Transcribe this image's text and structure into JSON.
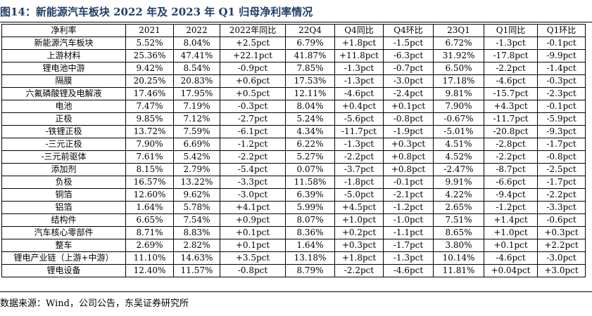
{
  "figure_title": "图14：新能源汽车板块 2022 年及 2023 年 Q1 归母净利率情况",
  "table": {
    "headers": [
      "净利率",
      "2021",
      "2022",
      "2022年同比",
      "22Q4",
      "Q4同比",
      "Q4环比",
      "23Q1",
      "Q1同比",
      "Q1环比"
    ],
    "rows": [
      [
        "新能源汽车板块",
        "5.52%",
        "8.04%",
        "+2.5pct",
        "6.79%",
        "+1.8pct",
        "-1.5pct",
        "6.72%",
        "-1.3pct",
        "-0.1pct"
      ],
      [
        "上游材料",
        "25.36%",
        "47.41%",
        "+22.1pct",
        "41.87%",
        "+11.8pct",
        "-6.3pct",
        "31.92%",
        "-17.8pct",
        "-9.9pct"
      ],
      [
        "锂电池中游",
        "9.42%",
        "8.54%",
        "-0.9pct",
        "7.85%",
        "-1.3pct",
        "-0.7pct",
        "6.50%",
        "-2.2pct",
        "-1.4pct"
      ],
      [
        "隔膜",
        "20.25%",
        "20.83%",
        "+0.6pct",
        "17.53%",
        "-1.3pct",
        "-3.0pct",
        "17.18%",
        "-4.6pct",
        "-0.3pct"
      ],
      [
        "六氟磷酸锂及电解液",
        "17.46%",
        "17.95%",
        "+0.5pct",
        "12.11%",
        "-4.6pct",
        "-2.4pct",
        "9.81%",
        "-15.7pct",
        "-2.3pct"
      ],
      [
        "电池",
        "7.47%",
        "7.19%",
        "-0.3pct",
        "8.04%",
        "+0.4pct",
        "+0.1pct",
        "7.90%",
        "+4.3pct",
        "-0.1pct"
      ],
      [
        "正极",
        "9.85%",
        "7.12%",
        "-2.7pct",
        "5.24%",
        "-5.6pct",
        "-0.8pct",
        "-0.67%",
        "-11.7pct",
        "-5.9pct"
      ],
      [
        "-铁锂正极",
        "13.72%",
        "7.59%",
        "-6.1pct",
        "4.34%",
        "-11.7pct",
        "-1.9pct",
        "-5.01%",
        "-20.8pct",
        "-9.3pct"
      ],
      [
        "-三元正极",
        "7.90%",
        "6.69%",
        "-1.2pct",
        "6.22%",
        "-1.3pct",
        "+0.3pct",
        "4.51%",
        "-2.8pct",
        "-1.7pct"
      ],
      [
        "-三元前驱体",
        "7.61%",
        "5.42%",
        "-2.2pct",
        "5.27%",
        "-2.2pct",
        "+0.8pct",
        "4.52%",
        "-2.2pct",
        "-0.8pct"
      ],
      [
        "添加剂",
        "8.15%",
        "2.79%",
        "-5.4pct",
        "0.07%",
        "-3.7pct",
        "+0.8pct",
        "-2.47%",
        "-8.7pct",
        "-2.5pct"
      ],
      [
        "负极",
        "16.57%",
        "13.22%",
        "-3.3pct",
        "11.58%",
        "-1.8pct",
        "-0.1pct",
        "9.91%",
        "-6.6pct",
        "-1.7pct"
      ],
      [
        "铜箔",
        "12.60%",
        "9.62%",
        "-3.0pct",
        "6.39%",
        "-5.0pct",
        "-2.1pct",
        "4.22%",
        "-9.4pct",
        "-2.2pct"
      ],
      [
        "铝箔",
        "1.64%",
        "5.78%",
        "+4.1pct",
        "5.99%",
        "+4.5pct",
        "-1.2pct",
        "2.65%",
        "-1.2pct",
        "-3.3pct"
      ],
      [
        "结构件",
        "6.65%",
        "7.54%",
        "+0.9pct",
        "8.07%",
        "+1.0pct",
        "-1.0pct",
        "7.51%",
        "+1.4pct",
        "-0.6pct"
      ],
      [
        "汽车核心零部件",
        "8.71%",
        "8.83%",
        "+0.1pct",
        "8.36%",
        "+0.2pct",
        "-1.1pct",
        "8.65%",
        "+1.0pct",
        "+0.3pct"
      ],
      [
        "整车",
        "2.69%",
        "2.82%",
        "+0.1pct",
        "1.64%",
        "+0.3pct",
        "-1.7pct",
        "3.80%",
        "+0.1pct",
        "+2.2pct"
      ],
      [
        "锂电产业链（上游+中游）",
        "11.10%",
        "14.63%",
        "+3.5pct",
        "13.18%",
        "+1.8pct",
        "-1.3pct",
        "10.14%",
        "-4.6pct",
        "-3.0pct"
      ],
      [
        "锂电设备",
        "12.40%",
        "11.57%",
        "-0.8pct",
        "8.79%",
        "-2.2pct",
        "-4.6pct",
        "11.81%",
        "+0.04pct",
        "+3.0pct"
      ]
    ]
  },
  "source_note": "数据来源：Wind，公司公告，东吴证券研究所"
}
